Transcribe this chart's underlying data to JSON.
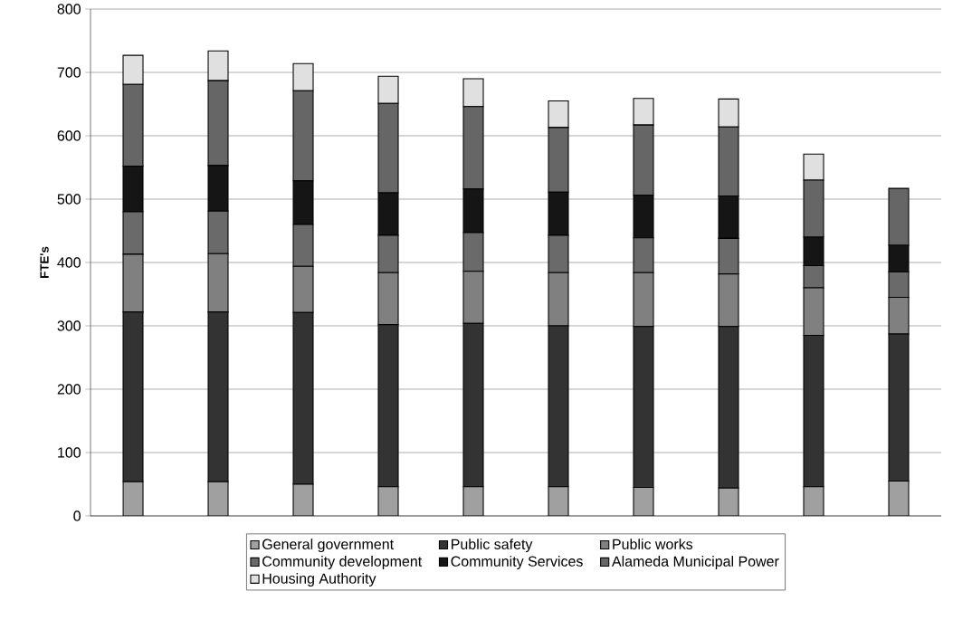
{
  "chart_data": {
    "type": "bar",
    "stacked": true,
    "ylabel": "FTE's",
    "categories": [
      null,
      null,
      null,
      null,
      null,
      null,
      null,
      null,
      null,
      null
    ],
    "ylim": [
      0,
      800
    ],
    "yticks": [
      0,
      100,
      200,
      300,
      400,
      500,
      600,
      700,
      800
    ],
    "grid": "y",
    "legend": "bottom",
    "series": [
      {
        "name": "General government",
        "color": "#a0a0a0",
        "values": [
          54,
          54,
          50,
          46,
          46,
          46,
          45,
          44,
          46,
          55
        ]
      },
      {
        "name": "Public safety",
        "color": "#333333",
        "values": [
          268,
          268,
          271,
          256,
          258,
          254,
          254,
          255,
          239,
          232
        ]
      },
      {
        "name": "Public works",
        "color": "#808080",
        "values": [
          91,
          92,
          73,
          82,
          82,
          84,
          85,
          83,
          75,
          58
        ]
      },
      {
        "name": "Community development",
        "color": "#6a6a6a",
        "values": [
          67,
          67,
          66,
          59,
          61,
          59,
          55,
          56,
          35,
          40
        ]
      },
      {
        "name": "Community Services",
        "color": "#151515",
        "values": [
          72,
          72,
          69,
          67,
          69,
          68,
          67,
          67,
          45,
          42
        ]
      },
      {
        "name": "Alameda Municipal Power",
        "color": "#666666",
        "values": [
          129,
          134,
          142,
          141,
          130,
          102,
          111,
          109,
          90,
          90
        ]
      },
      {
        "name": "Housing Authority",
        "color": "#e0e0e0",
        "values": [
          46,
          47,
          43,
          43,
          44,
          42,
          42,
          44,
          41,
          null
        ]
      }
    ]
  }
}
